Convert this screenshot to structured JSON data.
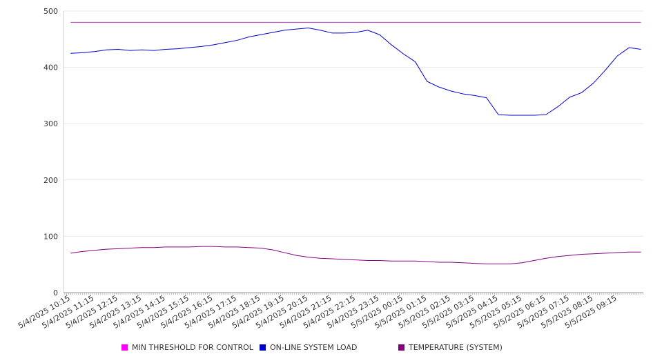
{
  "chart_data": {
    "type": "line",
    "title": "",
    "xlabel": "",
    "ylabel": "",
    "ylim": [
      0,
      500
    ],
    "y_ticks": [
      0,
      100,
      200,
      300,
      400,
      500
    ],
    "grid": true,
    "legend_position": "bottom",
    "x_tick_labels": [
      "5/4/2025 10:15",
      "5/4/2025 11:15",
      "5/4/2025 12:15",
      "5/4/2025 13:15",
      "5/4/2025 14:15",
      "5/4/2025 15:15",
      "5/4/2025 16:15",
      "5/4/2025 17:15",
      "5/4/2025 18:15",
      "5/4/2025 19:15",
      "5/4/2025 20:15",
      "5/4/2025 21:15",
      "5/4/2025 22:15",
      "5/4/2025 23:15",
      "5/5/2025 00:15",
      "5/5/2025 01:15",
      "5/5/2025 02:15",
      "5/5/2025 03:15",
      "5/5/2025 04:15",
      "5/5/2025 05:15",
      "5/5/2025 06:15",
      "5/5/2025 07:15",
      "5/5/2025 08:15",
      "5/5/2025 09:15"
    ],
    "x_hours": [
      0,
      0.5,
      1,
      1.5,
      2,
      2.5,
      3,
      3.5,
      4,
      4.5,
      5,
      5.5,
      6,
      6.5,
      7,
      7.5,
      8,
      8.5,
      9,
      9.5,
      10,
      10.5,
      11,
      11.5,
      12,
      12.5,
      13,
      13.5,
      14,
      14.5,
      15,
      15.5,
      16,
      16.5,
      17,
      17.5,
      18,
      18.5,
      19,
      19.5,
      20,
      20.5,
      21,
      21.5,
      22,
      22.5,
      23,
      23.5,
      24
    ],
    "x_range_hours": [
      -0.3,
      24.1
    ],
    "series": [
      {
        "name": "MIN THRESHOLD FOR CONTROL",
        "color": "#cc33cc",
        "values": [
          480,
          480,
          480,
          480,
          480,
          480,
          480,
          480,
          480,
          480,
          480,
          480,
          480,
          480,
          480,
          480,
          480,
          480,
          480,
          480,
          480,
          480,
          480,
          480,
          480,
          480,
          480,
          480,
          480,
          480,
          480,
          480,
          480,
          480,
          480,
          480,
          480,
          480,
          480,
          480,
          480,
          480,
          480,
          480,
          480,
          480,
          480,
          480,
          480
        ]
      },
      {
        "name": "ON-LINE SYSTEM LOAD",
        "color": "#0000cc",
        "values": [
          425,
          426,
          428,
          431,
          432,
          430,
          431,
          430,
          432,
          433,
          435,
          437,
          440,
          444,
          448,
          454,
          458,
          462,
          466,
          468,
          470,
          466,
          461,
          461,
          462,
          466,
          458,
          440,
          424,
          410,
          375,
          365,
          358,
          353,
          350,
          346,
          316,
          315,
          315,
          315,
          316,
          330,
          347,
          355,
          372,
          395,
          420,
          435,
          432
        ]
      },
      {
        "name": "TEMPERATURE (SYSTEM)",
        "color": "#800080",
        "values": [
          70,
          73,
          75,
          77,
          78,
          79,
          80,
          80,
          81,
          81,
          81,
          82,
          82,
          81,
          81,
          80,
          79,
          76,
          71,
          66,
          63,
          61,
          60,
          59,
          58,
          57,
          57,
          56,
          56,
          56,
          55,
          54,
          54,
          53,
          52,
          51,
          51,
          51,
          53,
          57,
          61,
          64,
          66,
          68,
          69,
          70,
          71,
          72,
          72
        ]
      }
    ]
  }
}
